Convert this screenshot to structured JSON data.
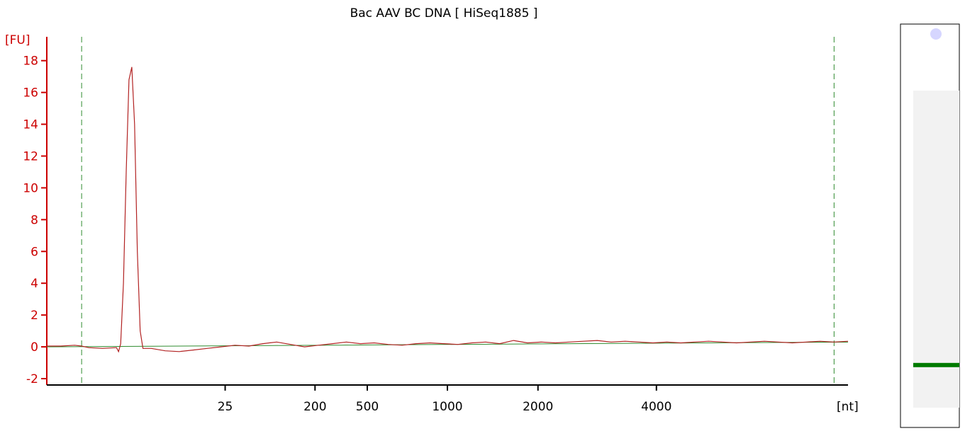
{
  "colors": {
    "y_axis": "#cc0000",
    "x_axis": "#000000",
    "trace": "#b22222",
    "baseline": "#2e8b2e",
    "marker_line": "#2e8b2e",
    "gel_band": "#007a00",
    "gel_bg": "#f2f2f2"
  },
  "chart_data": {
    "type": "line",
    "title": "Bac AAV BC DNA  [ HiSeq1885 ]",
    "ylabel": "[FU]",
    "xlabel": "[nt]",
    "ylim": [
      -2.4,
      19.5
    ],
    "yticks": [
      -2,
      0,
      2,
      4,
      6,
      8,
      10,
      12,
      14,
      16,
      18
    ],
    "xticks": [
      {
        "label": "25",
        "pos": 25.6
      },
      {
        "label": "200",
        "pos": 38.5
      },
      {
        "label": "500",
        "pos": 46
      },
      {
        "label": "1000",
        "pos": 57.5
      },
      {
        "label": "2000",
        "pos": 70.5
      },
      {
        "label": "4000",
        "pos": 87.5
      }
    ],
    "x_axis_pos_range": [
      0,
      115
    ],
    "markers": [
      5,
      113
    ],
    "series": [
      {
        "values": [
          [
            0,
            0.05
          ],
          [
            2,
            0.05
          ],
          [
            4,
            0.1
          ],
          [
            5,
            0.05
          ],
          [
            6,
            -0.05
          ],
          [
            8,
            -0.1
          ],
          [
            10,
            -0.05
          ],
          [
            10.3,
            -0.3
          ],
          [
            10.6,
            0.2
          ],
          [
            11.0,
            4
          ],
          [
            11.4,
            11
          ],
          [
            11.8,
            16.8
          ],
          [
            12.2,
            17.6
          ],
          [
            12.6,
            14
          ],
          [
            13.0,
            6
          ],
          [
            13.4,
            1
          ],
          [
            13.8,
            -0.1
          ],
          [
            15,
            -0.1
          ],
          [
            17,
            -0.25
          ],
          [
            19,
            -0.3
          ],
          [
            21,
            -0.2
          ],
          [
            23,
            -0.1
          ],
          [
            25,
            0.0
          ],
          [
            27,
            0.1
          ],
          [
            29,
            0.05
          ],
          [
            31,
            0.2
          ],
          [
            33,
            0.3
          ],
          [
            35,
            0.15
          ],
          [
            37,
            0.0
          ],
          [
            39,
            0.1
          ],
          [
            41,
            0.2
          ],
          [
            43,
            0.3
          ],
          [
            45,
            0.2
          ],
          [
            47,
            0.25
          ],
          [
            49,
            0.15
          ],
          [
            51,
            0.1
          ],
          [
            53,
            0.2
          ],
          [
            55,
            0.25
          ],
          [
            57,
            0.2
          ],
          [
            59,
            0.15
          ],
          [
            61,
            0.25
          ],
          [
            63,
            0.3
          ],
          [
            65,
            0.2
          ],
          [
            67,
            0.4
          ],
          [
            69,
            0.25
          ],
          [
            71,
            0.3
          ],
          [
            73,
            0.25
          ],
          [
            75,
            0.3
          ],
          [
            77,
            0.35
          ],
          [
            79,
            0.4
          ],
          [
            81,
            0.3
          ],
          [
            83,
            0.35
          ],
          [
            85,
            0.3
          ],
          [
            87,
            0.25
          ],
          [
            89,
            0.3
          ],
          [
            91,
            0.25
          ],
          [
            93,
            0.3
          ],
          [
            95,
            0.35
          ],
          [
            97,
            0.3
          ],
          [
            99,
            0.25
          ],
          [
            101,
            0.3
          ],
          [
            103,
            0.35
          ],
          [
            105,
            0.3
          ],
          [
            107,
            0.25
          ],
          [
            109,
            0.3
          ],
          [
            111,
            0.35
          ],
          [
            113,
            0.3
          ],
          [
            115,
            0.35
          ]
        ]
      }
    ],
    "baseline": [
      [
        0,
        0.0
      ],
      [
        115,
        0.3
      ]
    ],
    "grid": false,
    "legend": "none"
  },
  "gel": {
    "band_position": 0.84
  }
}
